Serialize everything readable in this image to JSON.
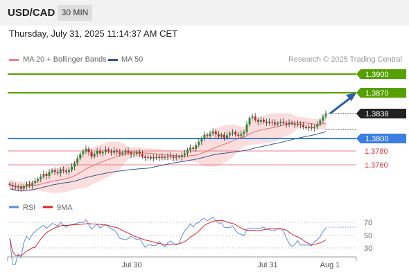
{
  "header": {
    "symbol": "USD/CAD",
    "timeframe_label": "30 MIN"
  },
  "datetime": "Thursday, July 31, 2025 11:14:37 AM CET",
  "legend": {
    "ma20_label": "MA 20 + Bollinger Bands",
    "ma50_label": "MA 50",
    "research_credit": "Research © 2025 Trading Central",
    "colors": {
      "ma20": "#f08080",
      "ma50": "#335599"
    }
  },
  "levels": [
    {
      "value": "1.3900",
      "kind": "resistance",
      "color": "#55a000"
    },
    {
      "value": "1.3870",
      "kind": "target",
      "color": "#55a000"
    },
    {
      "value": "1.3838",
      "kind": "current",
      "color": "#222222"
    },
    {
      "value": "1.3800",
      "kind": "pivot",
      "color": "#3a7fe0"
    },
    {
      "value": "1.3780",
      "kind": "support",
      "color": "#e05050"
    },
    {
      "value": "1.3760",
      "kind": "support",
      "color": "#e05050"
    }
  ],
  "rsi": {
    "label": "RSI",
    "ma_label": "9MA",
    "levels": [
      "70",
      "50",
      "30"
    ],
    "colors": {
      "rsi": "#5b8be0",
      "ma": "#dd2222"
    }
  },
  "xaxis": {
    "labels": [
      "Jul 30",
      "Jul 31",
      "Aug 1"
    ]
  },
  "chart_data": {
    "type": "candlestick",
    "price_range": [
      1.3715,
      1.3925
    ],
    "closes": [
      1.3728,
      1.3726,
      1.3724,
      1.3725,
      1.3722,
      1.3726,
      1.3729,
      1.3727,
      1.3731,
      1.3734,
      1.3737,
      1.3741,
      1.3745,
      1.3742,
      1.3748,
      1.3751,
      1.3748,
      1.3746,
      1.3752,
      1.375,
      1.3748,
      1.3751,
      1.3756,
      1.3762,
      1.3769,
      1.3776,
      1.378,
      1.3784,
      1.3779,
      1.3772,
      1.3776,
      1.3781,
      1.3777,
      1.3779,
      1.3783,
      1.378,
      1.3778,
      1.3781,
      1.3779,
      1.3776,
      1.3778,
      1.3781,
      1.3778,
      1.3775,
      1.3776,
      1.3779,
      1.3776,
      1.3772,
      1.377,
      1.3771,
      1.3769,
      1.3771,
      1.377,
      1.3772,
      1.377,
      1.3771,
      1.3773,
      1.3772,
      1.377,
      1.3772,
      1.3771,
      1.3774,
      1.3777,
      1.3782,
      1.3786,
      1.3784,
      1.379,
      1.3795,
      1.38,
      1.3806,
      1.3804,
      1.3808,
      1.3811,
      1.3807,
      1.3803,
      1.3806,
      1.3801,
      1.3805,
      1.3808,
      1.381,
      1.3806,
      1.3804,
      1.3807,
      1.381,
      1.3822,
      1.3832,
      1.3834,
      1.3829,
      1.3826,
      1.3829,
      1.3826,
      1.3824,
      1.3826,
      1.3825,
      1.3822,
      1.3824,
      1.3826,
      1.3824,
      1.3822,
      1.3825,
      1.3823,
      1.3821,
      1.3823,
      1.3821,
      1.3818,
      1.3816,
      1.3818,
      1.3816,
      1.3818,
      1.3822,
      1.3828,
      1.3834,
      1.3838
    ]
  }
}
